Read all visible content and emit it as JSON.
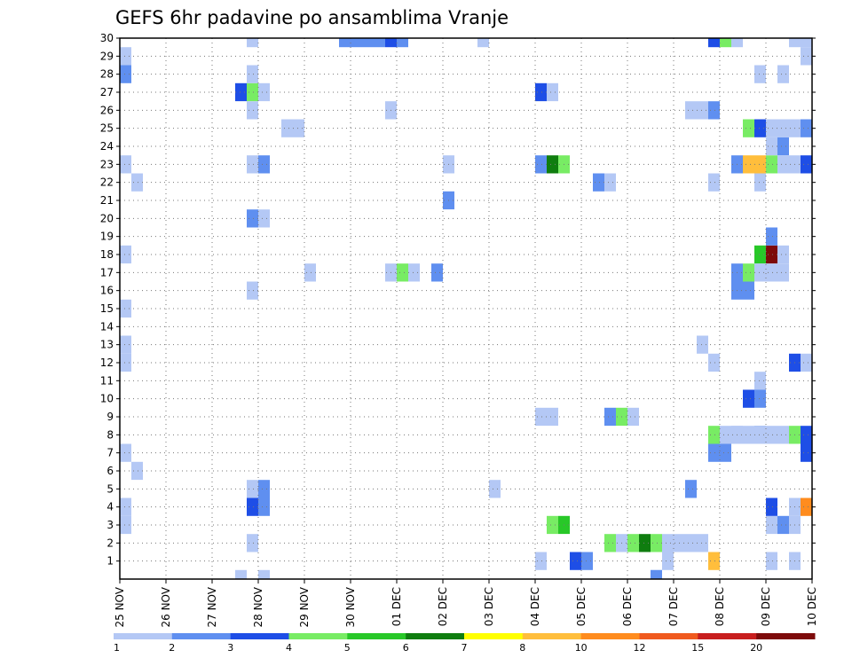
{
  "chart_data": {
    "type": "heatmap",
    "title": "GEFS 6hr padavine po ansamblima Vranje",
    "xlabel": "",
    "ylabel": "",
    "x_tick_labels": [
      "25 NOV",
      "26 NOV",
      "27 NOV",
      "28 NOV",
      "29 NOV",
      "30 NOV",
      "01 DEC",
      "02 DEC",
      "03 DEC",
      "04 DEC",
      "05 DEC",
      "06 DEC",
      "07 DEC",
      "08 DEC",
      "09 DEC",
      "10 DEC"
    ],
    "y_tick_labels": [
      "1",
      "2",
      "3",
      "4",
      "5",
      "6",
      "7",
      "8",
      "9",
      "10",
      "11",
      "12",
      "13",
      "14",
      "15",
      "16",
      "17",
      "18",
      "19",
      "20",
      "21",
      "22",
      "23",
      "24",
      "25",
      "26",
      "27",
      "28",
      "29",
      "30"
    ],
    "xlim_days": [
      0,
      15
    ],
    "ylim_members": [
      0,
      30
    ],
    "grid": true,
    "colorbar": {
      "position": "bottom",
      "labels": [
        "1",
        "2",
        "3",
        "4",
        "5",
        "6",
        "7",
        "8",
        "10",
        "12",
        "15",
        "20"
      ],
      "colors": [
        "#b4c8f5",
        "#5f8ff0",
        "#1e4ee6",
        "#78ec64",
        "#28c828",
        "#0f7d0f",
        "#ffff00",
        "#ffbe3c",
        "#ff8c1e",
        "#f05a1e",
        "#c81e1e",
        "#7d0a0a"
      ]
    },
    "cells": [
      [
        11.5,
        0,
        1
      ],
      [
        11.5,
        0,
        2
      ],
      [
        11.75,
        1,
        1
      ],
      [
        14.5,
        1,
        1
      ],
      [
        9.0,
        1,
        1
      ],
      [
        9.75,
        1,
        3
      ],
      [
        10.0,
        1,
        2
      ],
      [
        14.0,
        1,
        1
      ],
      [
        12.75,
        1,
        8
      ],
      [
        2.75,
        2,
        1
      ],
      [
        10.5,
        2,
        4
      ],
      [
        10.75,
        2,
        1
      ],
      [
        11.0,
        2,
        4
      ],
      [
        11.25,
        2,
        6
      ],
      [
        11.5,
        2,
        4
      ],
      [
        11.75,
        2,
        1
      ],
      [
        12.0,
        2,
        1
      ],
      [
        12.25,
        2,
        1
      ],
      [
        12.5,
        2,
        1
      ],
      [
        0.0,
        3,
        1
      ],
      [
        9.25,
        3,
        4
      ],
      [
        9.5,
        3,
        5
      ],
      [
        14.0,
        3,
        1
      ],
      [
        14.25,
        3,
        2
      ],
      [
        14.5,
        3,
        1
      ],
      [
        0.0,
        4,
        1
      ],
      [
        2.75,
        4,
        3
      ],
      [
        3.0,
        4,
        2
      ],
      [
        14.0,
        4,
        3
      ],
      [
        14.5,
        4,
        1
      ],
      [
        14.75,
        4,
        9
      ],
      [
        2.75,
        5,
        1
      ],
      [
        3.0,
        5,
        2
      ],
      [
        8.0,
        5,
        1
      ],
      [
        12.25,
        5,
        2
      ],
      [
        0.25,
        6,
        1
      ],
      [
        0.0,
        7,
        1
      ],
      [
        12.75,
        7,
        2
      ],
      [
        13.0,
        7,
        2
      ],
      [
        14.75,
        7,
        3
      ],
      [
        15.0,
        7,
        6
      ],
      [
        12.75,
        8,
        4
      ],
      [
        13.25,
        8,
        1
      ],
      [
        13.5,
        8,
        1
      ],
      [
        13.75,
        8,
        2
      ],
      [
        14.0,
        8,
        1
      ],
      [
        14.25,
        8,
        1
      ],
      [
        13.75,
        8,
        1
      ],
      [
        13.25,
        8,
        1
      ],
      [
        13.0,
        8,
        1
      ],
      [
        14.5,
        8,
        4
      ],
      [
        14.75,
        8,
        3
      ],
      [
        9.0,
        9,
        1
      ],
      [
        9.25,
        9,
        1
      ],
      [
        10.5,
        9,
        2
      ],
      [
        10.75,
        9,
        4
      ],
      [
        11.0,
        9,
        1
      ],
      [
        13.5,
        10,
        3
      ],
      [
        13.75,
        10,
        2
      ],
      [
        15.0,
        10,
        2
      ],
      [
        13.75,
        11,
        1
      ],
      [
        15.0,
        11,
        2
      ],
      [
        0.0,
        12,
        1
      ],
      [
        12.75,
        12,
        1
      ],
      [
        14.5,
        12,
        3
      ],
      [
        14.75,
        12,
        1
      ],
      [
        15.0,
        12,
        3
      ],
      [
        15.25,
        12,
        4
      ],
      [
        0.0,
        13,
        1
      ],
      [
        12.5,
        13,
        1
      ],
      [
        0.0,
        15,
        1
      ],
      [
        2.75,
        16,
        1
      ],
      [
        13.25,
        16,
        2
      ],
      [
        13.5,
        16,
        2
      ],
      [
        4.0,
        17,
        1
      ],
      [
        5.75,
        17,
        1
      ],
      [
        6.0,
        17,
        4
      ],
      [
        6.25,
        17,
        1
      ],
      [
        6.75,
        17,
        2
      ],
      [
        13.25,
        17,
        2
      ],
      [
        13.5,
        17,
        4
      ],
      [
        13.75,
        17,
        1
      ],
      [
        14.0,
        17,
        1
      ],
      [
        14.25,
        17,
        1
      ],
      [
        0.0,
        18,
        1
      ],
      [
        13.75,
        18,
        5
      ],
      [
        14.0,
        18,
        12
      ],
      [
        14.25,
        18,
        1
      ],
      [
        15.0,
        18,
        1
      ],
      [
        14.0,
        19,
        2
      ],
      [
        2.75,
        20,
        2
      ],
      [
        3.0,
        20,
        1
      ],
      [
        7.0,
        21,
        2
      ],
      [
        0.25,
        22,
        1
      ],
      [
        10.25,
        22,
        2
      ],
      [
        10.5,
        22,
        1
      ],
      [
        12.75,
        22,
        1
      ],
      [
        13.75,
        22,
        1
      ],
      [
        0.0,
        23,
        1
      ],
      [
        2.75,
        23,
        1
      ],
      [
        3.0,
        23,
        2
      ],
      [
        7.0,
        23,
        1
      ],
      [
        9.0,
        23,
        2
      ],
      [
        9.25,
        23,
        6
      ],
      [
        9.5,
        23,
        4
      ],
      [
        13.25,
        23,
        2
      ],
      [
        13.5,
        23,
        8
      ],
      [
        13.75,
        23,
        8
      ],
      [
        14.0,
        23,
        4
      ],
      [
        14.25,
        23,
        1
      ],
      [
        14.5,
        23,
        1
      ],
      [
        14.75,
        23,
        3
      ],
      [
        14.0,
        24,
        1
      ],
      [
        14.25,
        24,
        2
      ],
      [
        3.5,
        25,
        1
      ],
      [
        3.75,
        25,
        1
      ],
      [
        13.5,
        25,
        4
      ],
      [
        13.75,
        25,
        3
      ],
      [
        14.0,
        25,
        1
      ],
      [
        14.25,
        25,
        1
      ],
      [
        14.5,
        25,
        1
      ],
      [
        14.75,
        25,
        2
      ],
      [
        15.0,
        25,
        1
      ],
      [
        2.75,
        26,
        1
      ],
      [
        5.75,
        26,
        1
      ],
      [
        12.25,
        26,
        1
      ],
      [
        12.5,
        26,
        1
      ],
      [
        12.75,
        26,
        2
      ],
      [
        2.5,
        27,
        3
      ],
      [
        2.75,
        27,
        4
      ],
      [
        3.0,
        27,
        1
      ],
      [
        9.0,
        27,
        3
      ],
      [
        9.25,
        27,
        1
      ],
      [
        0.0,
        28,
        2
      ],
      [
        2.75,
        28,
        1
      ],
      [
        13.75,
        28,
        1
      ],
      [
        14.25,
        28,
        1
      ],
      [
        15.0,
        28,
        7
      ],
      [
        15.25,
        28,
        4
      ],
      [
        0.0,
        29,
        1
      ],
      [
        14.75,
        29,
        1
      ],
      [
        2.75,
        30,
        1
      ],
      [
        4.75,
        30,
        2
      ],
      [
        5.0,
        30,
        2
      ],
      [
        5.25,
        30,
        2
      ],
      [
        5.5,
        30,
        2
      ],
      [
        5.75,
        30,
        3
      ],
      [
        6.0,
        30,
        2
      ],
      [
        7.75,
        30,
        1
      ],
      [
        12.75,
        30,
        3
      ],
      [
        13.0,
        30,
        4
      ],
      [
        13.25,
        30,
        1
      ],
      [
        14.5,
        30,
        1
      ],
      [
        14.75,
        30,
        1
      ],
      [
        15.0,
        30,
        4
      ],
      [
        15.25,
        30,
        9
      ],
      [
        6.75,
        31,
        1
      ],
      [
        7.0,
        31,
        1
      ],
      [
        8.0,
        31,
        1
      ],
      [
        8.25,
        31,
        2
      ],
      [
        8.5,
        31,
        1
      ],
      [
        13.0,
        31,
        2
      ],
      [
        13.25,
        31,
        1
      ],
      [
        14.25,
        31,
        3
      ],
      [
        14.5,
        31,
        5
      ],
      [
        14.75,
        31,
        6
      ],
      [
        15.0,
        31,
        2
      ],
      [
        2.5,
        0,
        1
      ],
      [
        3.0,
        0,
        1
      ]
    ]
  }
}
